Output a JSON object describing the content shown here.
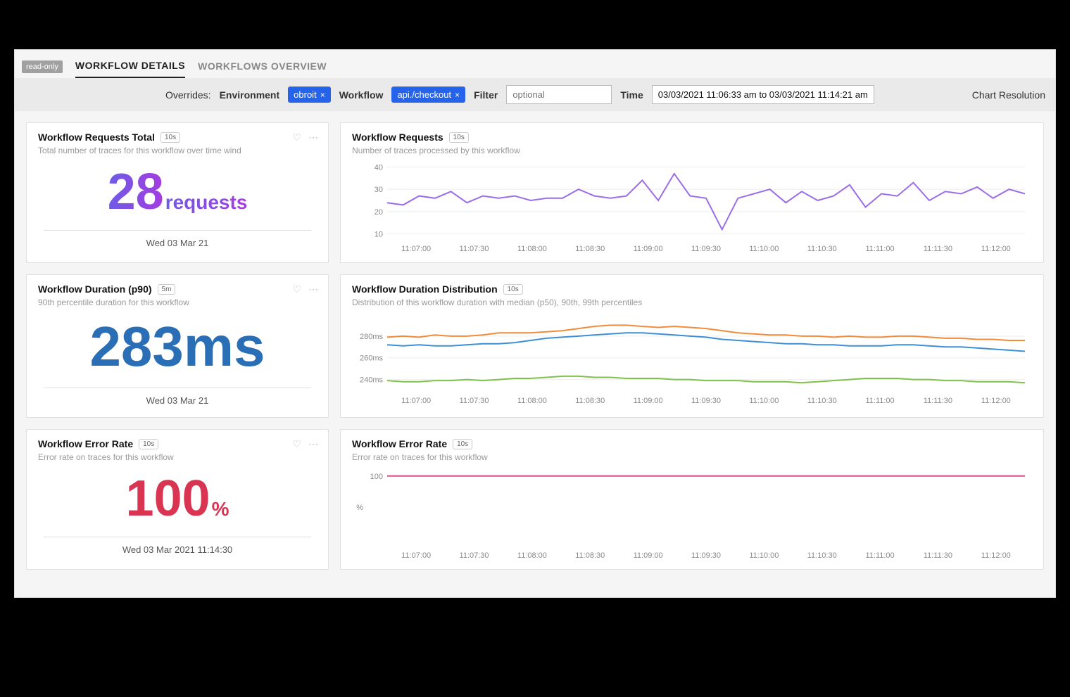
{
  "colors": {
    "purple": "#a43de0",
    "blue_stat": "#2a6fb5",
    "red_stat": "#d93552",
    "line_purple": "#9b6de8",
    "line_orange": "#f08c3c",
    "line_blue": "#3f8fd6",
    "line_green": "#7fc24a",
    "line_pink": "#d94f87",
    "grid": "#eeeeee",
    "axis_text": "#888888",
    "card_bg": "#ffffff",
    "frame_bg": "#f5f5f5"
  },
  "typography": {
    "stat_fontsize": 72,
    "stat_unit_fontsize": 28,
    "card_title_fontsize": 14,
    "card_subtitle_fontsize": 12,
    "axis_fontsize": 11
  },
  "topbar": {
    "readonly_badge": "read-only",
    "tabs": [
      "WORKFLOW DETAILS",
      "WORKFLOWS OVERVIEW"
    ],
    "active_tab_index": 0
  },
  "overrides": {
    "label": "Overrides:",
    "env_label": "Environment",
    "env_value": "obroit",
    "workflow_label": "Workflow",
    "workflow_value": "api./checkout",
    "filter_label": "Filter",
    "filter_placeholder": "optional",
    "time_label": "Time",
    "time_value": "03/03/2021 11:06:33 am to 03/03/2021 11:14:21 am",
    "chart_res_label": "Chart Resolution"
  },
  "stats": {
    "requests_total": {
      "title": "Workflow Requests Total",
      "interval": "10s",
      "subtitle": "Total number of traces for this workflow over time wind",
      "value": "28",
      "unit": "requests",
      "footer": "Wed 03 Mar 21"
    },
    "duration_p90": {
      "title": "Workflow Duration (p90)",
      "interval": "5m",
      "subtitle": "90th percentile duration for this workflow",
      "value": "283",
      "unit": "ms",
      "footer": "Wed 03 Mar 21"
    },
    "error_rate": {
      "title": "Workflow Error Rate",
      "interval": "10s",
      "subtitle": "Error rate on traces for this workflow",
      "value": "100",
      "unit": "%",
      "footer": "Wed 03 Mar 2021 11:14:30"
    }
  },
  "charts": {
    "time_ticks": [
      "11:07:00",
      "11:07:30",
      "11:08:00",
      "11:08:30",
      "11:09:00",
      "11:09:30",
      "11:10:00",
      "11:10:30",
      "11:11:00",
      "11:11:30",
      "11:12:00"
    ],
    "requests": {
      "title": "Workflow Requests",
      "interval": "10s",
      "subtitle": "Number of traces processed by this workflow",
      "type": "line",
      "y_ticks": [
        10,
        20,
        30,
        40
      ],
      "ylim": [
        8,
        42
      ],
      "series": [
        {
          "color": "#9b6de8",
          "width": 2,
          "values": [
            24,
            23,
            27,
            26,
            29,
            24,
            27,
            26,
            27,
            25,
            26,
            26,
            30,
            27,
            26,
            27,
            34,
            25,
            37,
            27,
            26,
            12,
            26,
            28,
            30,
            24,
            29,
            25,
            27,
            32,
            22,
            28,
            27,
            33,
            25,
            29,
            28,
            31,
            26,
            30,
            28
          ]
        }
      ]
    },
    "duration": {
      "title": "Workflow Duration Distribution",
      "interval": "10s",
      "subtitle": "Distribution of this workflow duration with median (p50), 90th, 99th percentiles",
      "type": "line",
      "y_ticks_labels": [
        "240ms",
        "260ms",
        "280ms"
      ],
      "y_ticks": [
        240,
        260,
        280
      ],
      "ylim": [
        230,
        300
      ],
      "series": [
        {
          "color": "#f08c3c",
          "width": 2,
          "values": [
            279,
            280,
            279,
            281,
            280,
            280,
            281,
            283,
            283,
            283,
            284,
            285,
            287,
            289,
            290,
            290,
            289,
            288,
            289,
            288,
            287,
            285,
            283,
            282,
            281,
            281,
            280,
            280,
            279,
            280,
            279,
            279,
            280,
            280,
            279,
            278,
            278,
            277,
            277,
            276,
            276
          ]
        },
        {
          "color": "#3f8fd6",
          "width": 2,
          "values": [
            272,
            271,
            272,
            271,
            271,
            272,
            273,
            273,
            274,
            276,
            278,
            279,
            280,
            281,
            282,
            283,
            283,
            282,
            281,
            280,
            279,
            277,
            276,
            275,
            274,
            273,
            273,
            272,
            272,
            271,
            271,
            271,
            272,
            272,
            271,
            270,
            270,
            269,
            268,
            267,
            266
          ]
        },
        {
          "color": "#7fc24a",
          "width": 2,
          "values": [
            239,
            238,
            238,
            239,
            239,
            240,
            239,
            240,
            241,
            241,
            242,
            243,
            243,
            242,
            242,
            241,
            241,
            241,
            240,
            240,
            239,
            239,
            239,
            238,
            238,
            238,
            237,
            238,
            239,
            240,
            241,
            241,
            241,
            240,
            240,
            239,
            239,
            238,
            238,
            238,
            237
          ]
        }
      ]
    },
    "error": {
      "title": "Workflow Error Rate",
      "interval": "10s",
      "subtitle": "Error rate on traces for this workflow",
      "type": "line",
      "y_ticks": [
        100
      ],
      "y_axis_label": "%",
      "ylim": [
        0,
        110
      ],
      "series": [
        {
          "color": "#d94f87",
          "width": 2,
          "values": [
            100,
            100,
            100,
            100,
            100,
            100,
            100,
            100,
            100,
            100,
            100,
            100,
            100,
            100,
            100,
            100,
            100,
            100,
            100,
            100,
            100,
            100,
            100,
            100,
            100,
            100,
            100,
            100,
            100,
            100,
            100,
            100,
            100,
            100,
            100,
            100,
            100,
            100,
            100,
            100,
            100
          ]
        }
      ]
    }
  }
}
